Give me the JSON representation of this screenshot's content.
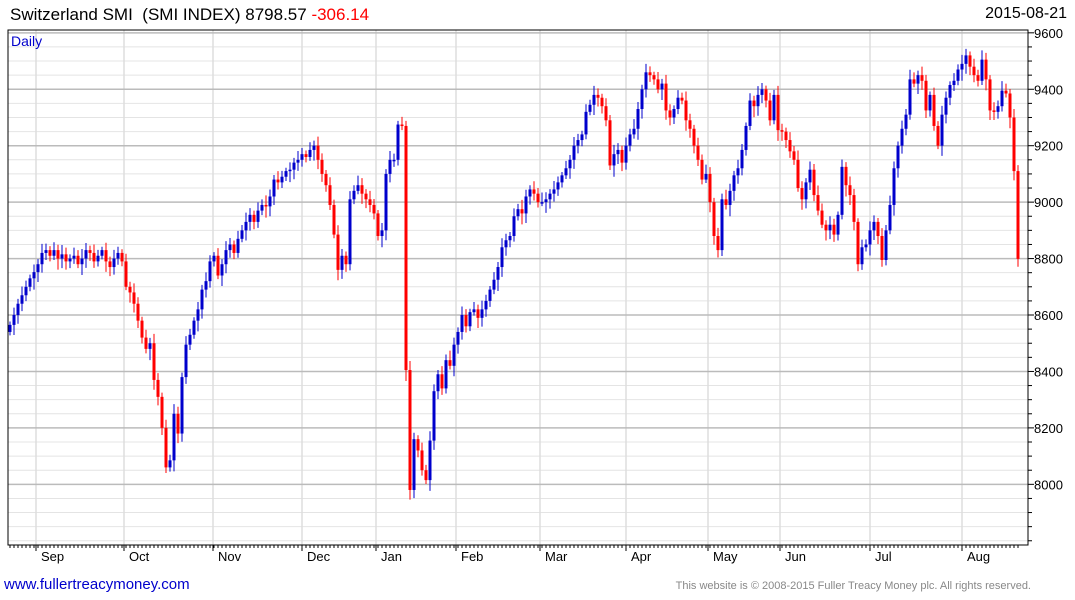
{
  "header": {
    "name": "Switzerland SMI",
    "ticker": "(SMI INDEX)",
    "last": "8798.57",
    "change": "-306.14",
    "date": "2015-08-21"
  },
  "footer": {
    "site": "www.fullertreacymoney.com",
    "copyright": "This website is © 2008-2015 Fuller Treacy Money plc. All rights reserved."
  },
  "colors": {
    "up": "#0000cc",
    "down": "#ff0000",
    "grid_major": "#bbbbbb",
    "grid_minor": "#e4e4e4"
  },
  "chart_data": {
    "type": "candlestick",
    "title": "Switzerland SMI (SMI INDEX)",
    "period_label": "Daily",
    "ylim": [
      7785,
      9610
    ],
    "y_ticks": [
      8000,
      8200,
      8400,
      8600,
      8800,
      9000,
      9200,
      9400,
      9600
    ],
    "y_minor_step": 50,
    "x_ticks": [
      {
        "label": "Sep",
        "index": 6.5
      },
      {
        "label": "Oct",
        "index": 28.5
      },
      {
        "label": "Nov",
        "index": 50.75
      },
      {
        "label": "Dec",
        "index": 73
      },
      {
        "label": "Jan",
        "index": 91.5
      },
      {
        "label": "Feb",
        "index": 111.5
      },
      {
        "label": "Mar",
        "index": 132.5
      },
      {
        "label": "Apr",
        "index": 154
      },
      {
        "label": "May",
        "index": 174.5
      },
      {
        "label": "Jun",
        "index": 192.5
      },
      {
        "label": "Jul",
        "index": 215
      },
      {
        "label": "Aug",
        "index": 238
      }
    ],
    "first_open": 8540,
    "close": [
      8565,
      8600,
      8640,
      8670,
      8700,
      8730,
      8752,
      8780,
      8820,
      8830,
      8810,
      8830,
      8800,
      8815,
      8790,
      8800,
      8810,
      8780,
      8800,
      8830,
      8820,
      8790,
      8810,
      8830,
      8790,
      8770,
      8800,
      8820,
      8790,
      8700,
      8680,
      8640,
      8580,
      8520,
      8480,
      8500,
      8370,
      8310,
      8200,
      8060,
      8085,
      8250,
      8180,
      8380,
      8495,
      8530,
      8580,
      8620,
      8690,
      8720,
      8790,
      8810,
      8740,
      8780,
      8830,
      8850,
      8820,
      8870,
      8900,
      8930,
      8955,
      8930,
      8970,
      8990,
      8985,
      9020,
      9080,
      9070,
      9090,
      9110,
      9115,
      9140,
      9150,
      9170,
      9160,
      9185,
      9200,
      9150,
      9100,
      9060,
      8990,
      8885,
      8760,
      8810,
      8780,
      9010,
      9040,
      9060,
      9030,
      9010,
      8990,
      8960,
      8880,
      8900,
      9100,
      9150,
      9150,
      9275,
      9270,
      8405,
      7980,
      8160,
      8120,
      8050,
      8015,
      8155,
      8330,
      8390,
      8340,
      8440,
      8420,
      8495,
      8540,
      8600,
      8560,
      8610,
      8620,
      8590,
      8620,
      8650,
      8690,
      8725,
      8770,
      8840,
      8865,
      8880,
      8950,
      8975,
      8960,
      9020,
      9045,
      9030,
      9000,
      9000,
      9010,
      9030,
      9045,
      9070,
      9095,
      9120,
      9150,
      9200,
      9220,
      9240,
      9320,
      9345,
      9380,
      9370,
      9340,
      9290,
      9130,
      9170,
      9185,
      9140,
      9200,
      9240,
      9260,
      9330,
      9400,
      9460,
      9450,
      9435,
      9400,
      9420,
      9325,
      9300,
      9330,
      9370,
      9360,
      9290,
      9260,
      9200,
      9150,
      9080,
      9100,
      9000,
      8880,
      8830,
      9010,
      8990,
      9040,
      9095,
      9120,
      9185,
      9270,
      9360,
      9340,
      9380,
      9400,
      9360,
      9290,
      9380,
      9255,
      9250,
      9220,
      9180,
      9150,
      9050,
      9010,
      9070,
      9115,
      9025,
      8970,
      8920,
      8900,
      8920,
      8885,
      8955,
      9125,
      9060,
      9025,
      8930,
      8780,
      8840,
      8850,
      8900,
      8930,
      8880,
      8795,
      8900,
      8990,
      9120,
      9200,
      9260,
      9310,
      9435,
      9420,
      9450,
      9430,
      9325,
      9380,
      9270,
      9200,
      9310,
      9370,
      9415,
      9430,
      9470,
      9490,
      9520,
      9480,
      9450,
      9430,
      9505,
      9435,
      9325,
      9320,
      9340,
      9395,
      9385,
      9300,
      9110,
      8799
    ]
  }
}
